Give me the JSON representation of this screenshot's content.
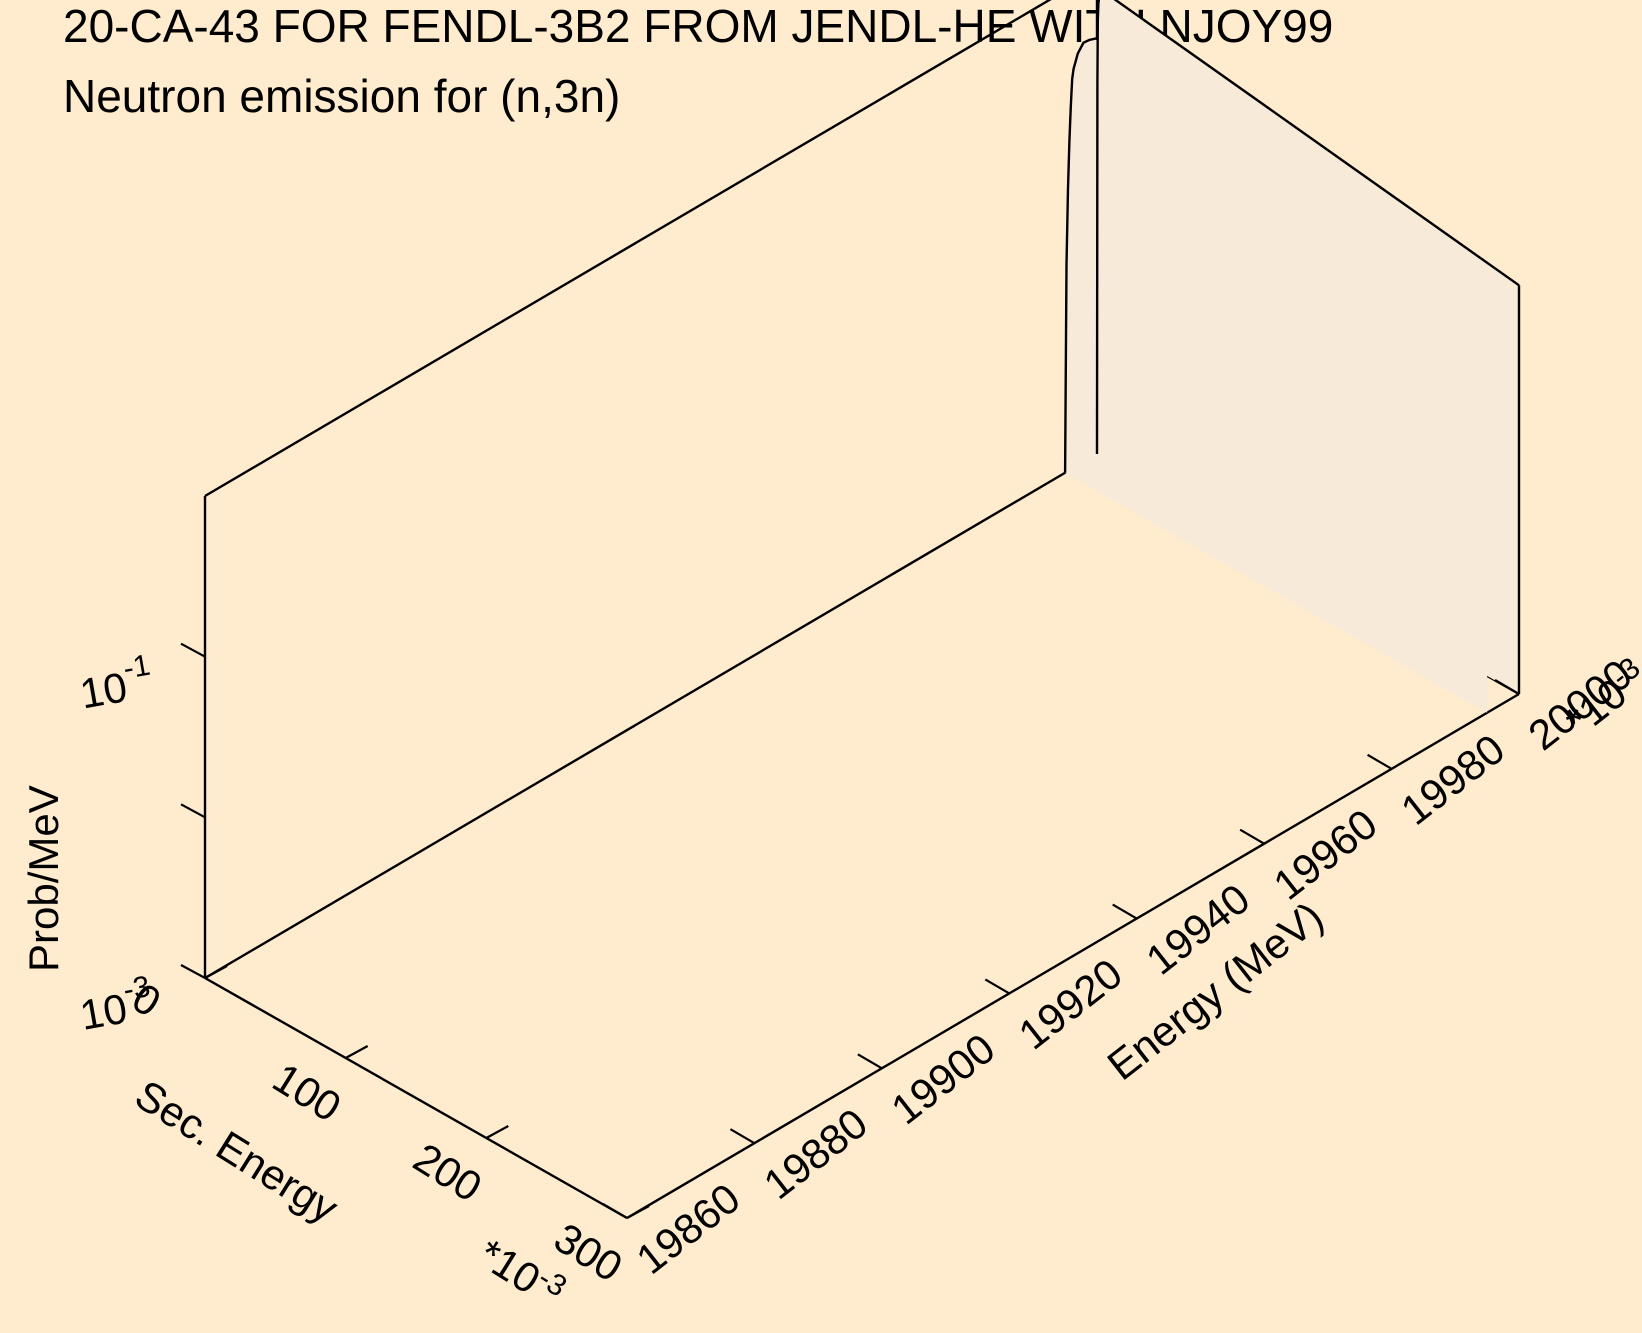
{
  "chart_data": {
    "type": "area",
    "title": "20-CA-43 FOR FENDL-3B2 FROM JENDL-HE WITH NJOY99",
    "subtitle": "Neutron emission for (n,3n)",
    "xlabel": "Sec. Energy",
    "xlabel_multiplier": "*10",
    "xlabel_multiplier_exp": "-3",
    "ylabel": "Energy (MeV)",
    "ylabel_multiplier": "*10",
    "ylabel_multiplier_exp": "-3",
    "zlabel": "Prob/MeV",
    "z_scale": "log",
    "xlim": [
      0,
      300
    ],
    "ylim": [
      19860,
      20000
    ],
    "zlim": [
      0.001,
      1
    ],
    "x_ticks": [
      "0",
      "100",
      "200",
      "300"
    ],
    "y_ticks": [
      "19860",
      "19880",
      "19900",
      "19920",
      "19940",
      "19960",
      "19980",
      "20000"
    ],
    "z_ticks": [
      {
        "base": "10",
        "exp": "-3",
        "value": 0.001
      },
      {
        "base": "10",
        "exp": "-1",
        "value": 0.1
      }
    ],
    "series": [
      {
        "incident_energy": 19995,
        "x": [
          0,
          1,
          2,
          3,
          4,
          5,
          6,
          9,
          13,
          17,
          22,
          300
        ],
        "z": [
          0.001,
          0.02,
          0.06,
          0.12,
          0.2,
          0.3,
          0.35,
          0.45,
          0.55,
          0.6,
          0.65,
          0.2
        ]
      },
      {
        "incident_energy": 20000,
        "x": [
          0,
          0.3,
          0.6,
          1,
          2,
          4,
          300
        ],
        "z": [
          0.001,
          0.2,
          0.5,
          0.65,
          0.75,
          0.8,
          0.35
        ]
      }
    ]
  }
}
